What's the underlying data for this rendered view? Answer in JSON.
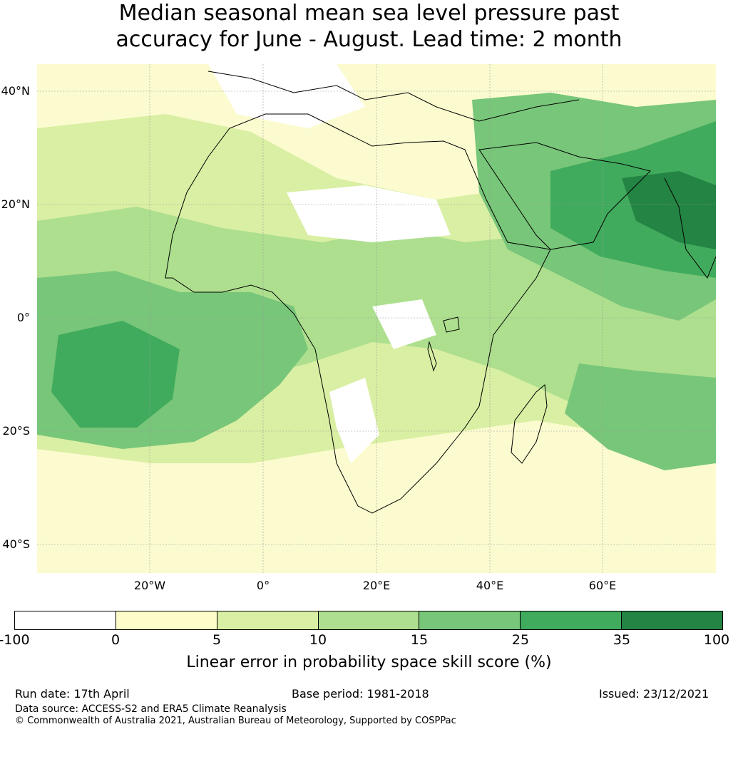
{
  "title": {
    "line1": "Median seasonal mean sea level pressure past",
    "line2": "accuracy for June - August. Lead time: 2 month"
  },
  "map": {
    "lat_labels": [
      "40°N",
      "20°N",
      "0°",
      "20°S",
      "40°S"
    ],
    "lon_labels": [
      "20°W",
      "0°",
      "20°E",
      "40°E",
      "60°E"
    ],
    "extent": {
      "lon_min": -40,
      "lon_max": 80,
      "lat_min": -45,
      "lat_max": 45
    },
    "gridline_color": "#999999",
    "coastline_color": "#000000"
  },
  "colorbar": {
    "ticks": [
      "-100",
      "0",
      "5",
      "10",
      "15",
      "25",
      "35",
      "100"
    ],
    "colors": [
      "#ffffff",
      "#fdfdc9",
      "#d9efa3",
      "#addf8e",
      "#78c679",
      "#41ab5d",
      "#238443"
    ],
    "label": "Linear error in probability space skill score (%)"
  },
  "footer": {
    "run_date": "Run date: 17th April",
    "base_period": "Base period: 1981-2018",
    "issued": "Issued: 23/12/2021",
    "data_source": "Data source: ACCESS-S2 and ERA5 Climate Reanalysis",
    "copyright": "© Commonwealth of Australia 2021, Australian Bureau of Meteorology, Supported by COSPPac"
  }
}
